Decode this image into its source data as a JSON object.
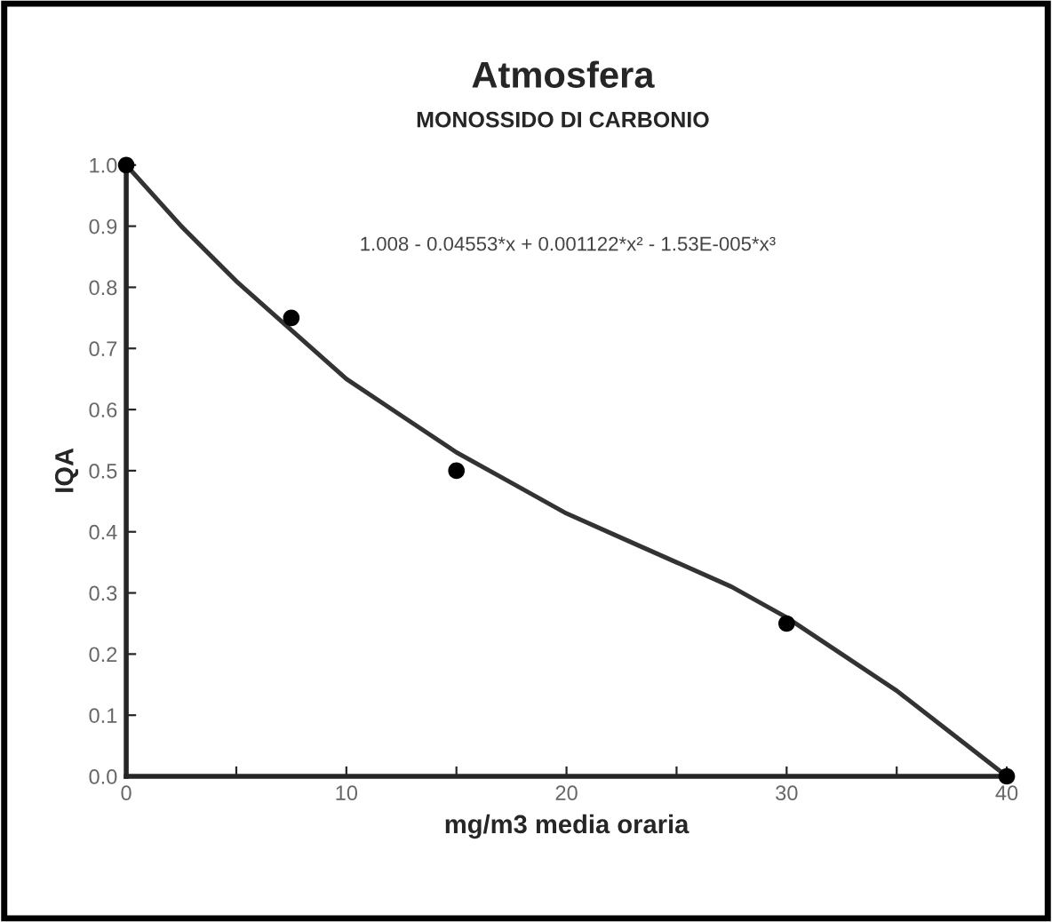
{
  "chart_data": {
    "type": "scatter",
    "title": "Atmosfera",
    "subtitle": "MONOSSIDO DI CARBONIO",
    "xlabel": "mg/m3 media oraria",
    "ylabel": "IQA",
    "series": [
      {
        "marker": "circle",
        "color": "#000000",
        "x": [
          0,
          7.5,
          15,
          30,
          40
        ],
        "values": [
          1.0,
          0.75,
          0.5,
          0.25,
          0.0
        ]
      },
      {
        "type": "line",
        "marker": "none",
        "color": "#333333",
        "x": [
          0,
          2.5,
          5,
          7.5,
          10,
          12.5,
          15,
          17.5,
          20,
          22.5,
          25,
          27.5,
          30,
          32.5,
          35,
          37.5,
          40
        ],
        "values": [
          1.0,
          0.9,
          0.81,
          0.73,
          0.65,
          0.59,
          0.53,
          0.48,
          0.43,
          0.39,
          0.35,
          0.31,
          0.26,
          0.2,
          0.14,
          0.07,
          0.0
        ]
      }
    ],
    "annotations": [
      "1.008 - 0.04553*x + 0.001122*x² - 1.53E-005*x³"
    ],
    "xlim": [
      0,
      40
    ],
    "ylim": [
      0,
      1.0
    ],
    "xticks": [
      0,
      {
        "value": 5,
        "label": null
      },
      10,
      {
        "value": 15,
        "label": null
      },
      20,
      {
        "value": 25,
        "label": null
      },
      30,
      {
        "value": 35,
        "label": null
      },
      40
    ],
    "yticks": [
      {
        "value": 0,
        "label": "0.0"
      },
      0.1,
      0.2,
      0.3,
      0.4,
      0.5,
      0.6,
      0.7,
      0.8,
      0.9,
      {
        "value": 1.0,
        "label": "1.0"
      }
    ],
    "grid": false
  }
}
